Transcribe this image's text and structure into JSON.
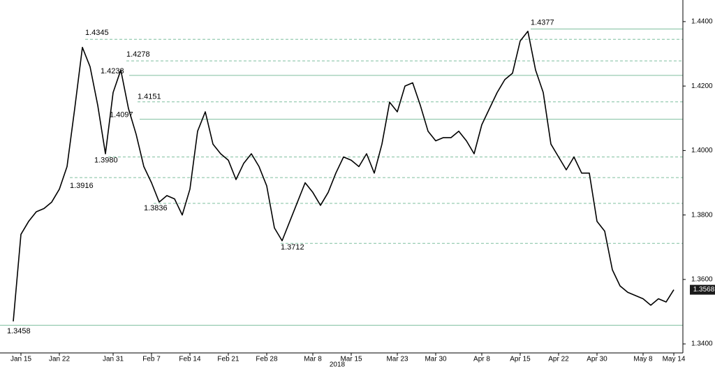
{
  "chart_data": {
    "type": "line",
    "xlabel": "2018",
    "categories": [
      null,
      "Jan 15",
      null,
      null,
      null,
      null,
      "Jan 22",
      null,
      null,
      null,
      null,
      null,
      null,
      "Jan 31",
      null,
      null,
      null,
      null,
      "Feb 7",
      null,
      null,
      null,
      null,
      "Feb 14",
      null,
      null,
      null,
      null,
      "Feb 21",
      null,
      null,
      null,
      null,
      "Feb 28",
      null,
      null,
      null,
      null,
      null,
      "Mar 8",
      null,
      null,
      null,
      null,
      "Mar 15",
      null,
      null,
      null,
      null,
      null,
      "Mar 23",
      null,
      null,
      null,
      null,
      "Mar 30",
      null,
      null,
      null,
      null,
      null,
      "Apr 8",
      null,
      null,
      null,
      null,
      "Apr 15",
      null,
      null,
      null,
      null,
      "Apr 22",
      null,
      null,
      null,
      null,
      "Apr 30",
      null,
      null,
      null,
      null,
      null,
      "May 8",
      null,
      null,
      null,
      "May 14"
    ],
    "values": [
      1.347,
      1.374,
      1.378,
      1.381,
      1.382,
      1.384,
      1.388,
      1.395,
      1.413,
      1.432,
      1.426,
      1.414,
      1.399,
      1.418,
      1.425,
      1.413,
      1.405,
      1.395,
      1.39,
      1.384,
      1.386,
      1.385,
      1.38,
      1.388,
      1.406,
      1.412,
      1.402,
      1.399,
      1.397,
      1.391,
      1.396,
      1.399,
      1.395,
      1.389,
      1.376,
      1.372,
      1.378,
      1.384,
      1.39,
      1.387,
      1.383,
      1.387,
      1.393,
      1.398,
      1.397,
      1.395,
      1.399,
      1.393,
      1.402,
      1.415,
      1.412,
      1.42,
      1.421,
      1.414,
      1.406,
      1.403,
      1.404,
      1.404,
      1.406,
      1.403,
      1.399,
      1.408,
      1.413,
      1.418,
      1.422,
      1.424,
      1.434,
      1.437,
      1.425,
      1.418,
      1.402,
      1.398,
      1.394,
      1.398,
      1.393,
      1.393,
      1.378,
      1.375,
      1.363,
      1.358,
      1.356,
      1.355,
      1.354,
      1.352,
      1.354,
      1.353,
      1.3568
    ],
    "color": "#000000",
    "ylim": [
      1.3372,
      1.4467
    ],
    "yticks": [
      {
        "value": 1.34,
        "label": "1.3400"
      },
      {
        "value": 1.36,
        "label": "1.3600"
      },
      {
        "value": 1.38,
        "label": "1.3800"
      },
      {
        "value": 1.4,
        "label": "1.4000"
      },
      {
        "value": 1.42,
        "label": "1.4200"
      },
      {
        "value": 1.44,
        "label": "1.4400"
      }
    ],
    "levels": [
      {
        "value": 1.4377,
        "label": "1.4377",
        "style": "solid"
      },
      {
        "value": 1.4345,
        "label": "1.4345",
        "style": "dashed"
      },
      {
        "value": 1.4278,
        "label": "1.4278",
        "style": "dashed"
      },
      {
        "value": 1.4233,
        "label": "1.4233",
        "style": "solid"
      },
      {
        "value": 1.4151,
        "label": "1.4151",
        "style": "dashed"
      },
      {
        "value": 1.4097,
        "label": "1.4097",
        "style": "solid"
      },
      {
        "value": 1.398,
        "label": "1.3980",
        "style": "dashed"
      },
      {
        "value": 1.3916,
        "label": "1.3916",
        "style": "dashed"
      },
      {
        "value": 1.3836,
        "label": "1.3836",
        "style": "dashed"
      },
      {
        "value": 1.3712,
        "label": "1.3712",
        "style": "dashed"
      },
      {
        "value": 1.3458,
        "label": "1.3458",
        "style": "solid"
      }
    ],
    "level_color": "#7fbf9f"
  }
}
